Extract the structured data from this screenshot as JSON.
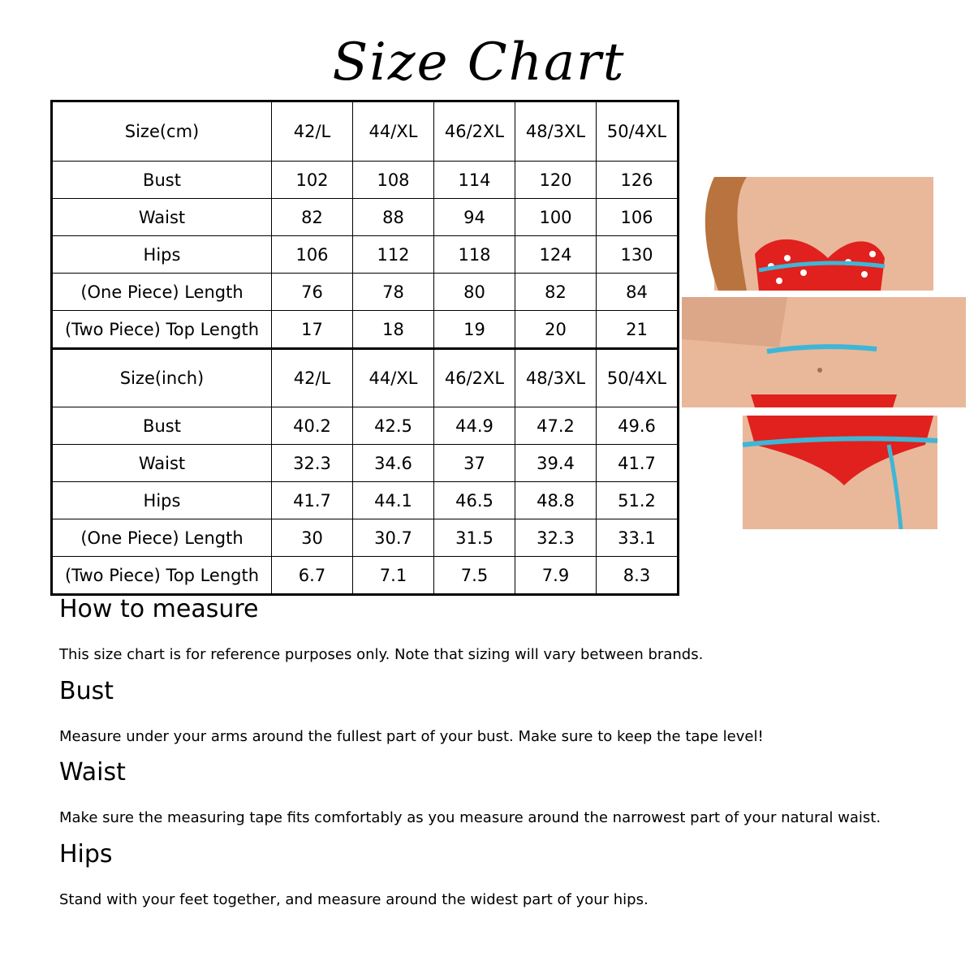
{
  "title": "Size Chart",
  "columns": [
    "42/L",
    "44/XL",
    "46/2XL",
    "48/3XL",
    "50/4XL"
  ],
  "tables": [
    {
      "header": "Size(cm)",
      "rows": [
        {
          "label": "Bust",
          "values": [
            "102",
            "108",
            "114",
            "120",
            "126"
          ]
        },
        {
          "label": "Waist",
          "values": [
            "82",
            "88",
            "94",
            "100",
            "106"
          ]
        },
        {
          "label": "Hips",
          "values": [
            "106",
            "112",
            "118",
            "124",
            "130"
          ]
        },
        {
          "label": "(One Piece) Length",
          "values": [
            "76",
            "78",
            "80",
            "82",
            "84"
          ]
        },
        {
          "label": "(Two Piece) Top Length",
          "values": [
            "17",
            "18",
            "19",
            "20",
            "21"
          ]
        }
      ]
    },
    {
      "header": "Size(inch)",
      "rows": [
        {
          "label": "Bust",
          "values": [
            "40.2",
            "42.5",
            "44.9",
            "47.2",
            "49.6"
          ]
        },
        {
          "label": "Waist",
          "values": [
            "32.3",
            "34.6",
            "37",
            "39.4",
            "41.7"
          ]
        },
        {
          "label": "Hips",
          "values": [
            "41.7",
            "44.1",
            "46.5",
            "48.8",
            "51.2"
          ]
        },
        {
          "label": "(One Piece) Length",
          "values": [
            "30",
            "30.7",
            "31.5",
            "32.3",
            "33.1"
          ]
        },
        {
          "label": "(Two Piece) Top Length",
          "values": [
            "6.7",
            "7.1",
            "7.5",
            "7.9",
            "8.3"
          ]
        }
      ]
    }
  ],
  "guide": {
    "heading": "How to measure",
    "intro": "This size chart is for reference purposes only. Note that sizing will vary between brands.",
    "sections": [
      {
        "heading": "Bust",
        "text": "Measure under your arms around the fullest part of your bust. Make sure to keep the tape level!"
      },
      {
        "heading": "Waist",
        "text": "Make sure the measuring tape fits comfortably as you measure around the narrowest part of your natural waist."
      },
      {
        "heading": "Hips",
        "text": "Stand with your feet together, and measure around the widest part of your hips."
      }
    ]
  },
  "colors": {
    "skin": "#e9b89a",
    "bikini": "#e0211d",
    "tape": "#3fb6d6"
  }
}
